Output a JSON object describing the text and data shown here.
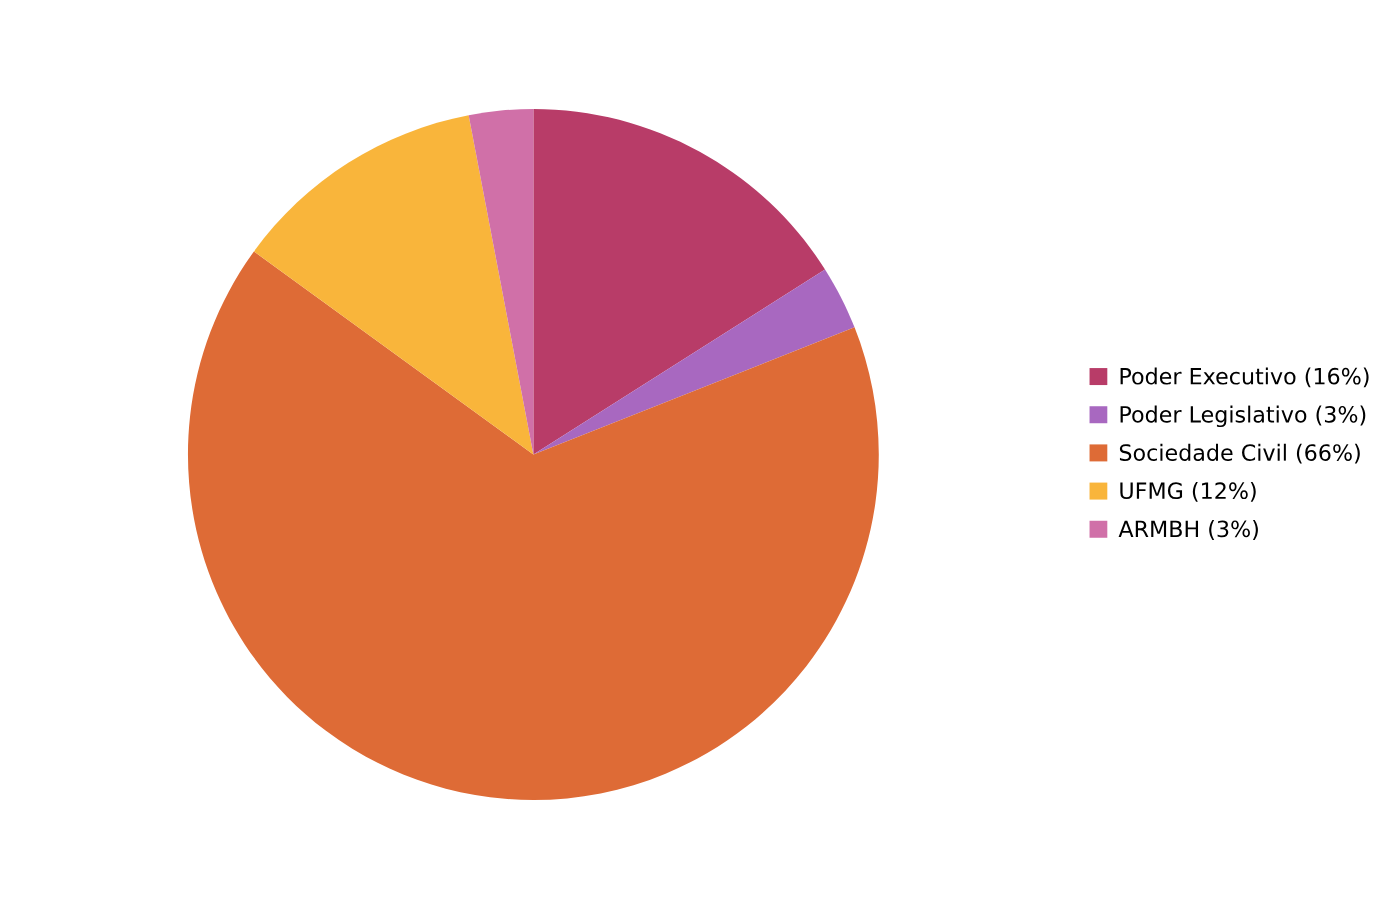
{
  "chart_data": {
    "type": "pie",
    "categories": [
      "Poder Executivo (16%)",
      "Poder Legislativo (3%)",
      "Sociedade Civil (66%)",
      "UFMG (12%)",
      "ARMBH (3%)"
    ],
    "values": [
      16,
      3,
      66,
      12,
      3
    ],
    "colors": [
      "#b83c68",
      "#a868c0",
      "#de6b36",
      "#f9b53b",
      "#d070a8"
    ],
    "legend": "right"
  }
}
